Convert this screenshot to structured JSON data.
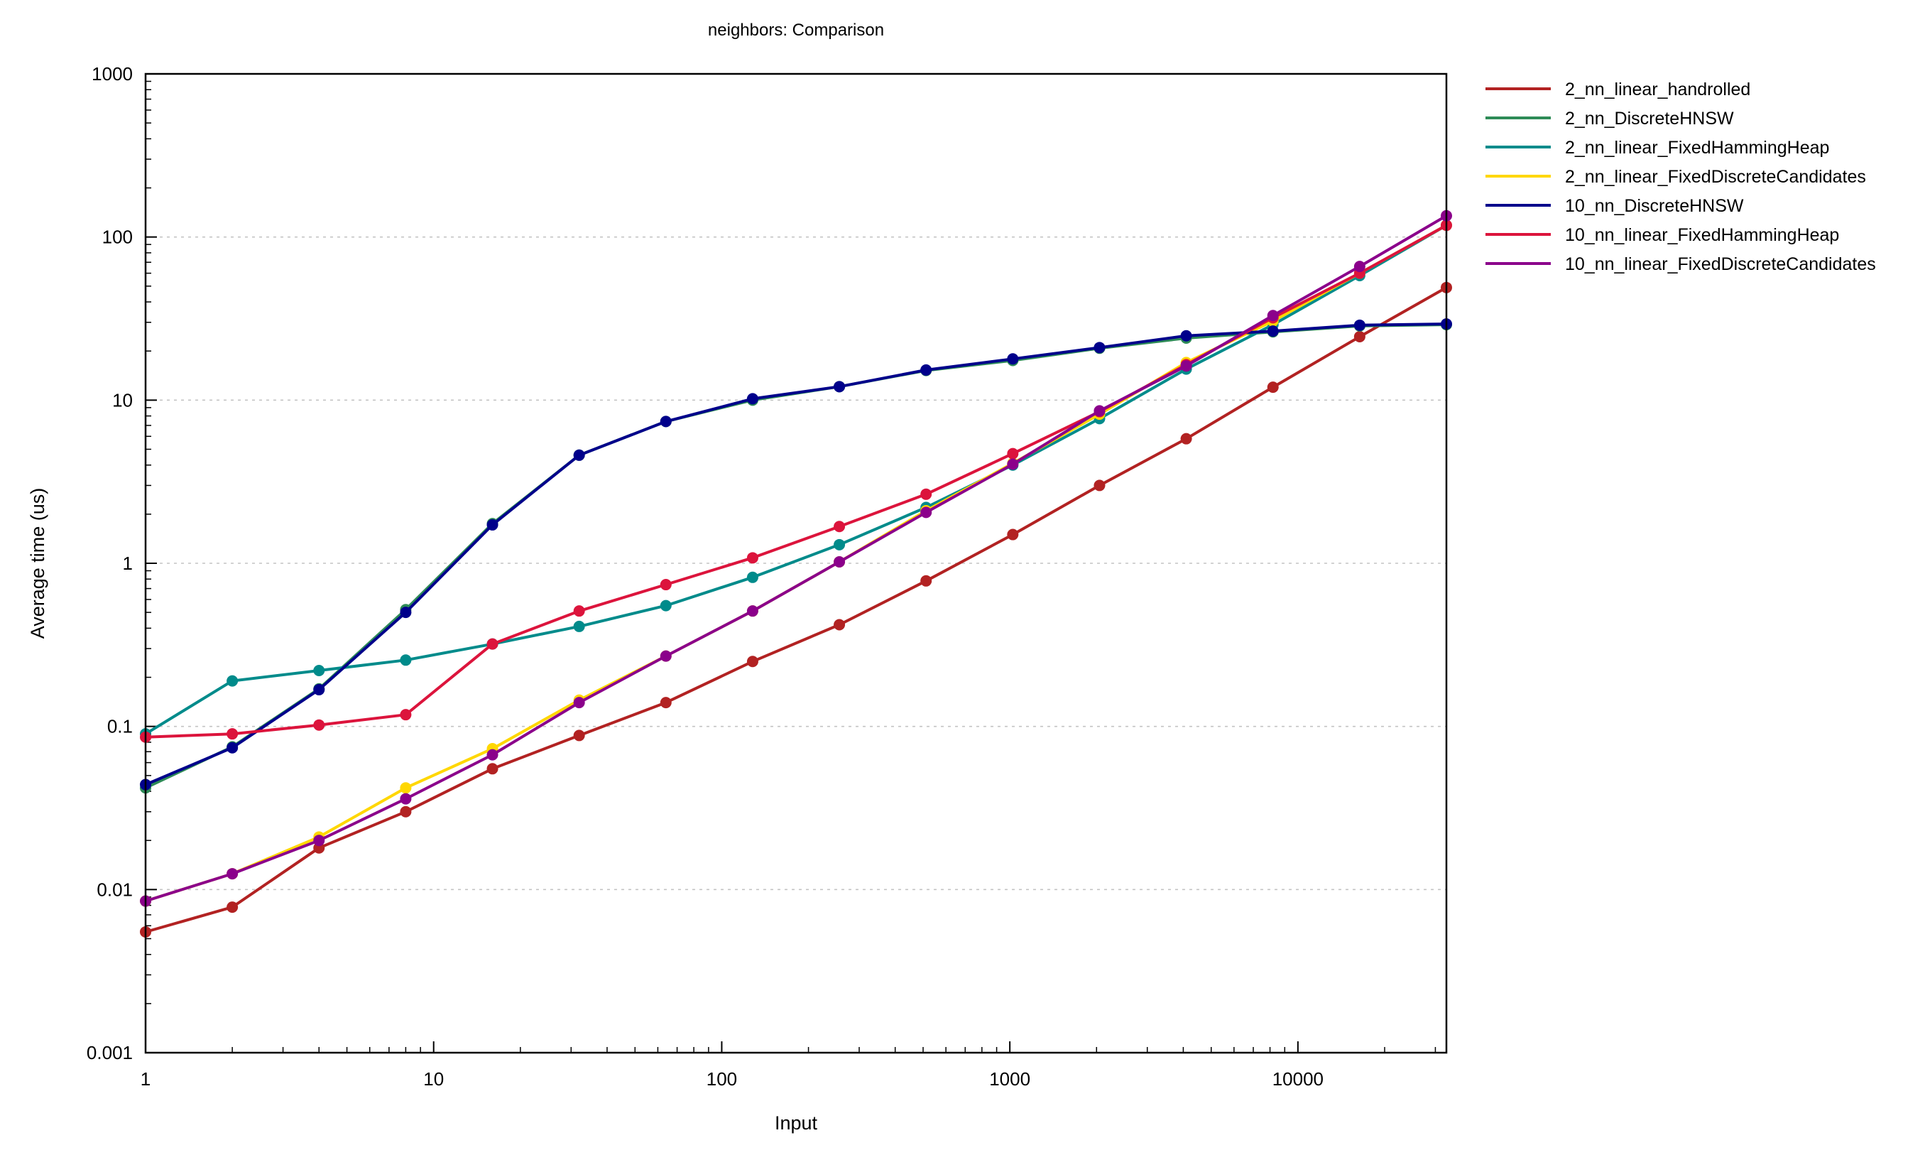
{
  "chart_data": {
    "type": "line",
    "title": "neighbors: Comparison",
    "xlabel": "Input",
    "ylabel": "Average time (us)",
    "x_scale": "log",
    "y_scale": "log",
    "xlim": [
      1,
      32768
    ],
    "ylim": [
      0.001,
      1000
    ],
    "grid": "horizontal-dotted",
    "legend_position": "right",
    "x_ticks": [
      {
        "value": 1,
        "label": "1"
      },
      {
        "value": 10,
        "label": "10"
      },
      {
        "value": 100,
        "label": "100"
      },
      {
        "value": 1000,
        "label": "1000"
      },
      {
        "value": 10000,
        "label": "10000"
      }
    ],
    "y_ticks": [
      {
        "value": 0.001,
        "label": "0.001"
      },
      {
        "value": 0.01,
        "label": "0.01"
      },
      {
        "value": 0.1,
        "label": "0.1"
      },
      {
        "value": 1,
        "label": "1"
      },
      {
        "value": 10,
        "label": "10"
      },
      {
        "value": 100,
        "label": "100"
      },
      {
        "value": 1000,
        "label": "1000"
      }
    ],
    "x": [
      1,
      2,
      4,
      8,
      16,
      32,
      64,
      128,
      256,
      512,
      1024,
      2048,
      4096,
      8192,
      16384,
      32768
    ],
    "series": [
      {
        "name": "2_nn_linear_handrolled",
        "color": "#b22222",
        "values": [
          0.0055,
          0.0078,
          0.018,
          0.03,
          0.055,
          0.088,
          0.14,
          0.25,
          0.42,
          0.78,
          1.5,
          3.0,
          5.8,
          12.0,
          24.5,
          49.0
        ]
      },
      {
        "name": "2_nn_DiscreteHNSW",
        "color": "#2e8b57",
        "values": [
          0.042,
          0.075,
          0.17,
          0.52,
          1.75,
          4.6,
          7.4,
          10.0,
          12.1,
          15.2,
          17.5,
          20.8,
          24.0,
          26.2,
          28.5,
          29.0
        ]
      },
      {
        "name": "2_nn_linear_FixedHammingHeap",
        "color": "#008b8b",
        "values": [
          0.09,
          0.19,
          0.22,
          0.255,
          0.32,
          0.41,
          0.55,
          0.82,
          1.3,
          2.2,
          4.0,
          7.7,
          15.5,
          29.0,
          58.0,
          118.0
        ]
      },
      {
        "name": "2_nn_linear_FixedDiscreteCandidates",
        "color": "#ffd700",
        "values": [
          0.0085,
          0.0125,
          0.021,
          0.042,
          0.073,
          0.145,
          0.27,
          0.51,
          1.02,
          2.1,
          4.1,
          8.2,
          17.0,
          30.5,
          60.0,
          118.0
        ]
      },
      {
        "name": "10_nn_DiscreteHNSW",
        "color": "#00008b",
        "values": [
          0.044,
          0.074,
          0.168,
          0.5,
          1.72,
          4.6,
          7.4,
          10.2,
          12.1,
          15.3,
          17.9,
          21.0,
          24.8,
          26.5,
          28.8,
          29.3
        ]
      },
      {
        "name": "10_nn_linear_FixedHammingHeap",
        "color": "#dc143c",
        "values": [
          0.086,
          0.09,
          0.102,
          0.118,
          0.32,
          0.51,
          0.74,
          1.08,
          1.68,
          2.65,
          4.7,
          8.5,
          16.5,
          32.0,
          60.0,
          118.0
        ]
      },
      {
        "name": "10_nn_linear_FixedDiscreteCandidates",
        "color": "#8b008b",
        "values": [
          0.0085,
          0.0125,
          0.02,
          0.036,
          0.067,
          0.14,
          0.27,
          0.51,
          1.02,
          2.05,
          4.05,
          8.6,
          16.2,
          33.0,
          66.0,
          135.0
        ]
      }
    ]
  }
}
